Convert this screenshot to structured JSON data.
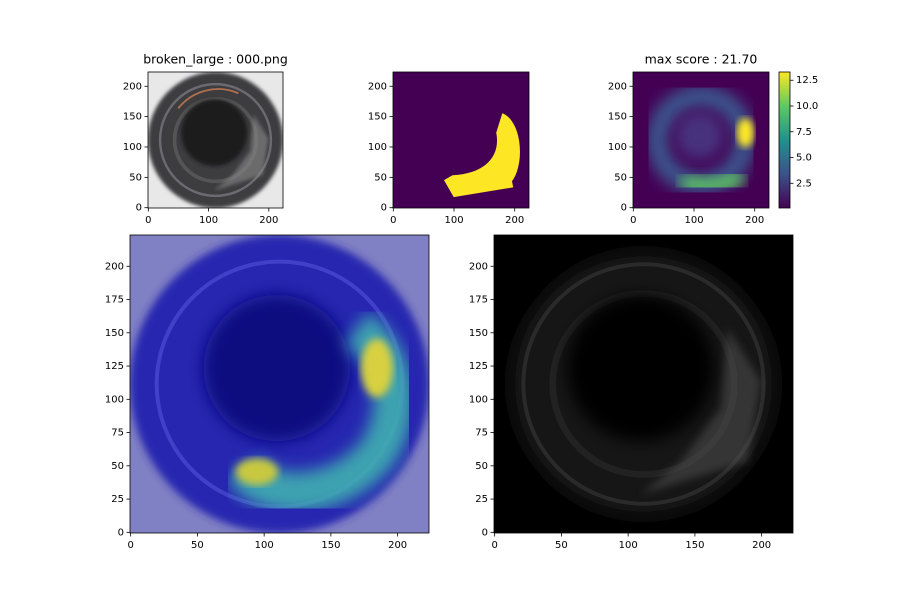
{
  "chart_data": [
    {
      "type": "image",
      "title": "broken_large : 000.png",
      "xlim": [
        -0.5,
        223.5
      ],
      "ylim": [
        223.5,
        -0.5
      ],
      "xticks": [
        0,
        100,
        200
      ],
      "yticks": [
        0,
        50,
        100,
        150,
        200
      ]
    },
    {
      "type": "image",
      "xlim": [
        -0.5,
        223.5
      ],
      "ylim": [
        223.5,
        -0.5
      ],
      "xticks": [
        0,
        100,
        200
      ],
      "yticks": [
        0,
        50,
        100,
        150,
        200
      ]
    },
    {
      "type": "image",
      "title": "max score : 21.70",
      "xlim": [
        -0.5,
        223.5
      ],
      "ylim": [
        223.5,
        -0.5
      ],
      "xticks": [
        0,
        100,
        200
      ],
      "yticks": [
        0,
        50,
        100,
        150,
        200
      ],
      "colorbar": {
        "lim": [
          0.1,
          13.3
        ],
        "ticks": [
          2.5,
          {
            "value": 5,
            "label": "5.0"
          },
          7.5,
          {
            "value": 10,
            "label": "10.0"
          },
          12.5
        ]
      }
    },
    {
      "type": "image",
      "xlim": [
        -0.5,
        223.5
      ],
      "ylim": [
        223.5,
        -0.5
      ],
      "xticks": [
        0,
        50,
        100,
        150,
        200
      ],
      "yticks": [
        0,
        25,
        50,
        75,
        100,
        125,
        150,
        175,
        200
      ]
    },
    {
      "type": "image",
      "xlim": [
        -0.5,
        223.5
      ],
      "ylim": [
        223.5,
        -0.5
      ],
      "xticks": [
        0,
        50,
        100,
        150,
        200
      ],
      "yticks": [
        0,
        25,
        50,
        75,
        100,
        125,
        150,
        175,
        200
      ]
    }
  ]
}
